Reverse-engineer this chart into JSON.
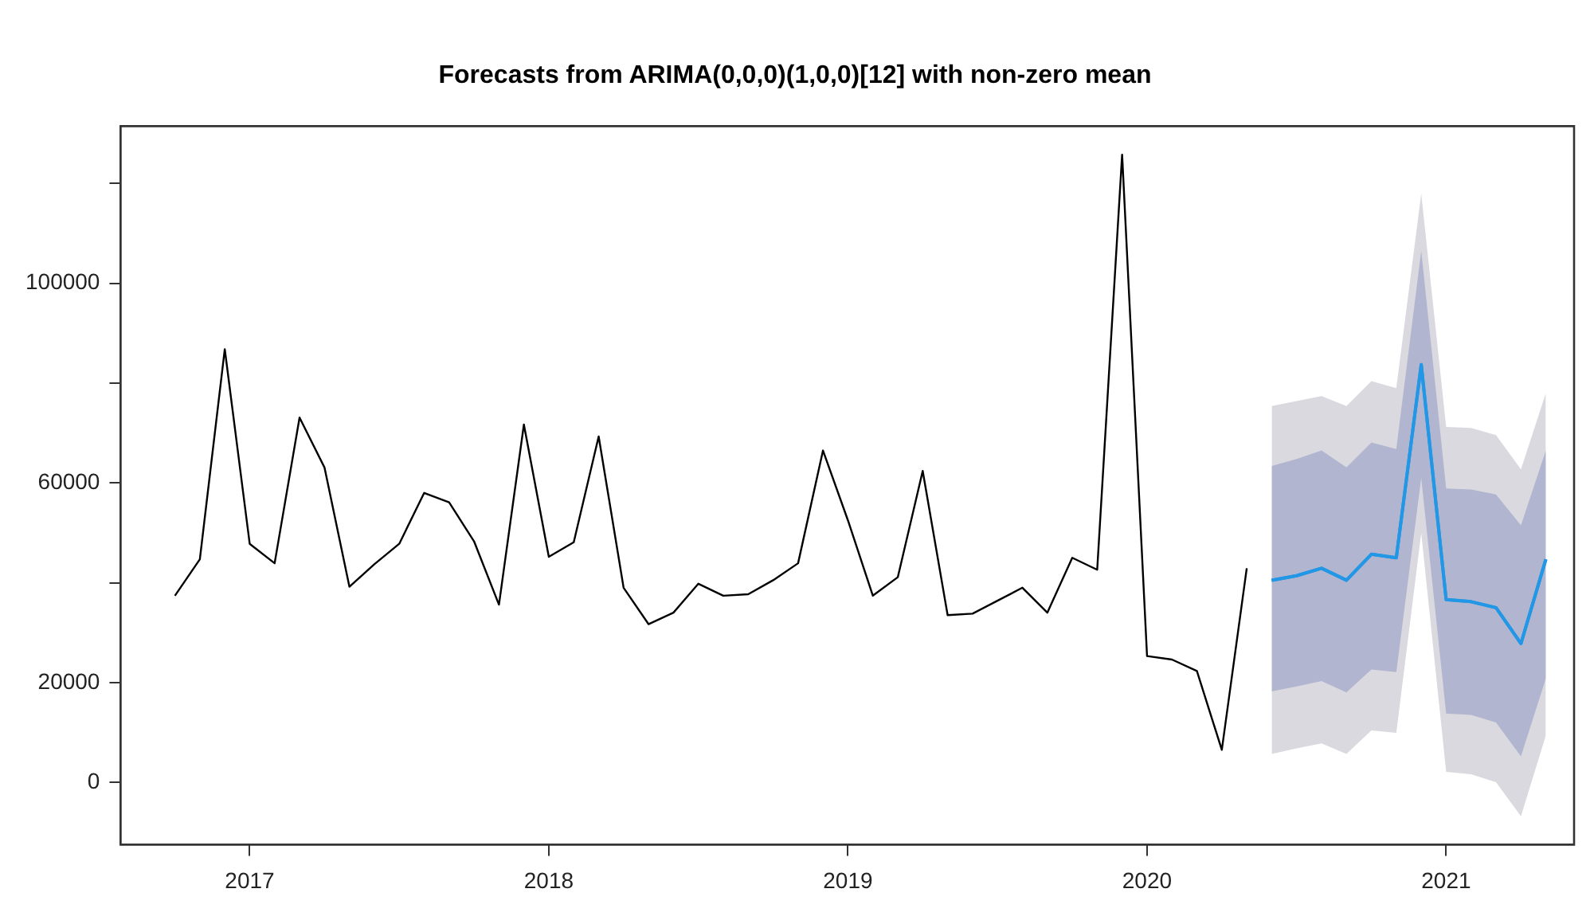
{
  "chart_data": {
    "type": "line",
    "title": "Forecasts from ARIMA(0,0,0)(1,0,0)[12] with non-zero mean",
    "xlim": [
      "2016-07-26",
      "2021-06-05"
    ],
    "xticks": [
      {
        "value": "2017-01",
        "label": "2017"
      },
      {
        "value": "2018-01",
        "label": "2018"
      },
      {
        "value": "2019-01",
        "label": "2019"
      },
      {
        "value": "2020-01",
        "label": "2020"
      },
      {
        "value": "2021-01",
        "label": "2021"
      }
    ],
    "ylim": [
      -12500,
      131500
    ],
    "yticks": [
      0,
      20000,
      {
        "value": 40000,
        "label": null
      },
      60000,
      {
        "value": 80000,
        "label": null
      },
      100000,
      {
        "value": 120000,
        "label": null
      }
    ],
    "grid": false,
    "legend": false,
    "marker": "none",
    "line_style": "solid",
    "series": [
      {
        "color": "#000000",
        "x": [
          "2016-10",
          "2016-11",
          "2016-12",
          "2017-01",
          "2017-02",
          "2017-03",
          "2017-04",
          "2017-05",
          "2017-06",
          "2017-07",
          "2017-08",
          "2017-09",
          "2017-10",
          "2017-11",
          "2017-12",
          "2018-01",
          "2018-02",
          "2018-03",
          "2018-04",
          "2018-05",
          "2018-06",
          "2018-07",
          "2018-08",
          "2018-09",
          "2018-10",
          "2018-11",
          "2018-12",
          "2019-01",
          "2019-02",
          "2019-03",
          "2019-04",
          "2019-05",
          "2019-06",
          "2019-07",
          "2019-08",
          "2019-09",
          "2019-10",
          "2019-11",
          "2019-12",
          "2020-01",
          "2020-02",
          "2020-03",
          "2020-04",
          "2020-05"
        ],
        "values": [
          37400,
          44700,
          86800,
          47800,
          43900,
          73100,
          63100,
          39200,
          43700,
          47800,
          58000,
          56100,
          48300,
          35600,
          71700,
          45200,
          48100,
          69300,
          39000,
          31700,
          34000,
          39800,
          37400,
          37700,
          40500,
          43900,
          66500,
          52500,
          37400,
          41100,
          62400,
          33500,
          33800,
          36400,
          39000,
          34000,
          45000,
          42600,
          125800,
          25300,
          24600,
          22300,
          6500,
          42900
        ]
      },
      {
        "color": "#2297e6",
        "x": [
          "2020-06",
          "2020-07",
          "2020-08",
          "2020-09",
          "2020-10",
          "2020-11",
          "2020-12",
          "2021-01",
          "2021-02",
          "2021-03",
          "2021-04",
          "2021-05"
        ],
        "values": [
          40500,
          41400,
          42900,
          40500,
          45700,
          45000,
          83700,
          36600,
          36200,
          35000,
          27800,
          44700
        ],
        "lower": [
          5700,
          6800,
          7800,
          5700,
          10400,
          9900,
          50000,
          2100,
          1600,
          0,
          -6800,
          9400
        ],
        "upper": [
          75400,
          76400,
          77400,
          75400,
          80400,
          79000,
          118000,
          71200,
          71000,
          69600,
          62700,
          78000
        ]
      },
      {
        "color": "#2297e6",
        "x": [
          "2020-06",
          "2020-07",
          "2020-08",
          "2020-09",
          "2020-10",
          "2020-11",
          "2020-12",
          "2021-01",
          "2021-02",
          "2021-03",
          "2021-04",
          "2021-05"
        ],
        "values": [
          40500,
          41400,
          42900,
          40500,
          45700,
          45000,
          83700,
          36600,
          36200,
          35000,
          27800,
          44700
        ],
        "lower": [
          18200,
          19200,
          20300,
          18000,
          22600,
          22100,
          61000,
          13800,
          13500,
          12000,
          5200,
          20800
        ],
        "upper": [
          63400,
          64800,
          66500,
          63100,
          68100,
          66800,
          106500,
          58900,
          58700,
          57700,
          51500,
          66500
        ]
      }
    ]
  }
}
